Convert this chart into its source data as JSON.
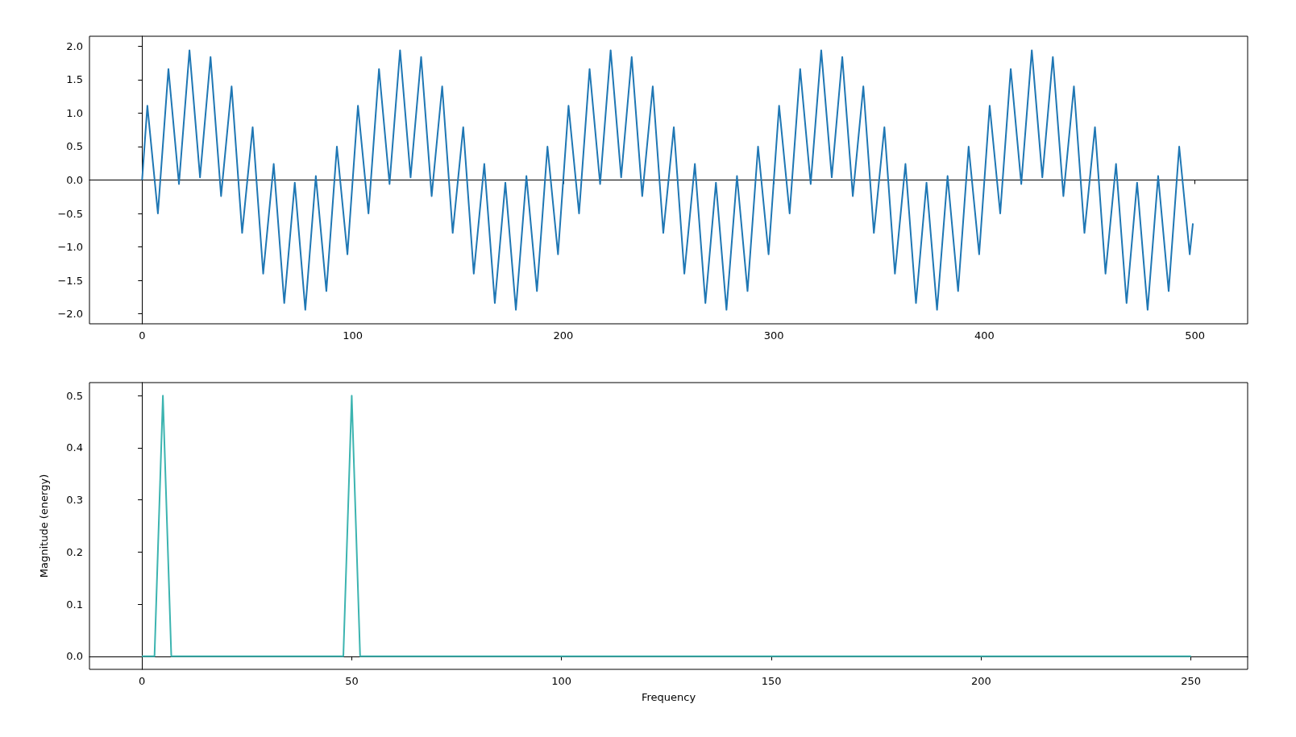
{
  "chart_data": [
    {
      "type": "line",
      "color": "#1f77b4",
      "x": [
        0,
        2.5,
        7.5,
        12.5,
        17.5,
        22.5,
        27.5,
        32.5,
        37.5,
        42.5,
        47.5,
        52.5,
        57.5,
        62.5,
        67.5,
        72.5,
        77.5,
        82.5,
        87.5,
        92.5,
        97.5,
        102.5,
        107.5,
        112.5,
        117.5,
        122.5,
        127.5,
        132.5,
        137.5,
        142.5,
        147.5,
        152.5,
        157.5,
        162.5,
        167.5,
        172.5,
        177.5,
        182.5,
        187.5,
        192.5,
        197.5,
        202.5,
        207.5,
        212.5,
        217.5,
        222.5,
        227.5,
        232.5,
        237.5,
        242.5,
        247.5,
        252.5,
        257.5,
        262.5,
        267.5,
        272.5,
        277.5,
        282.5,
        287.5,
        292.5,
        297.5,
        302.5,
        307.5,
        312.5,
        317.5,
        322.5,
        327.5,
        332.5,
        337.5,
        342.5,
        347.5,
        352.5,
        357.5,
        362.5,
        367.5,
        372.5,
        377.5,
        382.5,
        387.5,
        392.5,
        397.5,
        402.5,
        407.5,
        412.5,
        417.5,
        422.5,
        427.5,
        432.5,
        437.5,
        442.5,
        447.5,
        452.5,
        457.5,
        462.5,
        467.5,
        472.5,
        477.5,
        482.5,
        487.5,
        492.5,
        497.5,
        499
      ],
      "values": [
        0,
        1.11,
        -0.5,
        1.66,
        -0.06,
        1.94,
        0.04,
        1.84,
        -0.24,
        1.4,
        -0.79,
        0.79,
        -1.4,
        0.24,
        -1.84,
        -0.04,
        -1.94,
        0.06,
        -1.66,
        0.5,
        -1.11,
        1.11,
        -0.5,
        1.66,
        -0.06,
        1.94,
        0.04,
        1.84,
        -0.24,
        1.4,
        -0.79,
        0.79,
        -1.4,
        0.24,
        -1.84,
        -0.04,
        -1.94,
        0.06,
        -1.66,
        0.5,
        -1.11,
        1.11,
        -0.5,
        1.66,
        -0.06,
        1.94,
        0.04,
        1.84,
        -0.24,
        1.4,
        -0.79,
        0.79,
        -1.4,
        0.24,
        -1.84,
        -0.04,
        -1.94,
        0.06,
        -1.66,
        0.5,
        -1.11,
        1.11,
        -0.5,
        1.66,
        -0.06,
        1.94,
        0.04,
        1.84,
        -0.24,
        1.4,
        -0.79,
        0.79,
        -1.4,
        0.24,
        -1.84,
        -0.04,
        -1.94,
        0.06,
        -1.66,
        0.5,
        -1.11,
        1.11,
        -0.5,
        1.66,
        -0.06,
        1.94,
        0.04,
        1.84,
        -0.24,
        1.4,
        -0.79,
        0.79,
        -1.4,
        0.24,
        -1.84,
        -0.04,
        -1.94,
        0.06,
        -1.66,
        0.5,
        -1.11,
        -0.65
      ],
      "xlim": [
        -25,
        525
      ],
      "xticks": [
        0,
        100,
        200,
        300,
        400,
        500
      ],
      "ylim": [
        -2.15,
        2.15
      ],
      "yticks": [
        {
          "value": -2,
          "label": "−2.0"
        },
        {
          "value": -1.5,
          "label": "−1.5"
        },
        {
          "value": -1,
          "label": "−1.0"
        },
        {
          "value": -0.5,
          "label": "−0.5"
        },
        {
          "value": 0,
          "label": "0.0"
        },
        {
          "value": 0.5,
          "label": "0.5"
        },
        {
          "value": 1,
          "label": "1.0"
        },
        {
          "value": 1.5,
          "label": "1.5"
        },
        {
          "value": 2,
          "label": "2.0"
        }
      ]
    },
    {
      "type": "line",
      "color": "#3cb4b0",
      "xlabel": "Frequency",
      "ylabel": "Magnitude (energy)",
      "x": [
        0,
        3,
        5,
        7,
        48,
        50,
        52,
        250
      ],
      "values": [
        0,
        0,
        0.5,
        0,
        0,
        0.5,
        0,
        0
      ],
      "xlim": [
        -12.5,
        263.5
      ],
      "xticks": [
        0,
        50,
        100,
        150,
        200,
        250
      ],
      "ylim": [
        -0.025,
        0.525
      ],
      "yticks": [
        {
          "value": 0,
          "label": "0.0"
        },
        {
          "value": 0.1,
          "label": "0.1"
        },
        {
          "value": 0.2,
          "label": "0.2"
        },
        {
          "value": 0.3,
          "label": "0.3"
        },
        {
          "value": 0.4,
          "label": "0.4"
        },
        {
          "value": 0.5,
          "label": "0.5"
        }
      ]
    }
  ]
}
